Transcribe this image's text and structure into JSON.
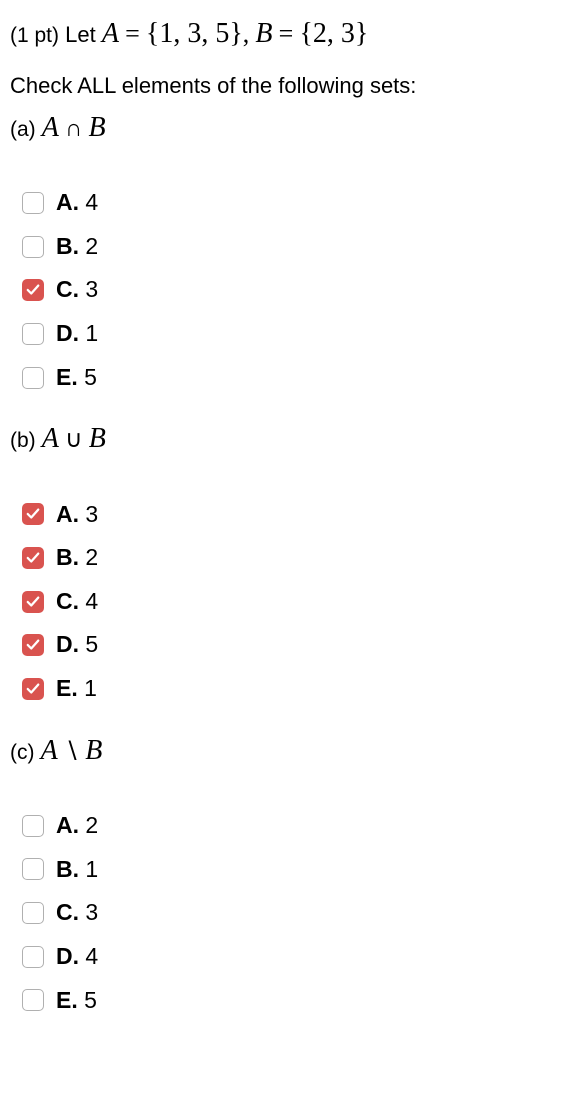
{
  "points_prefix": "(1 pt)",
  "let_text": "Let",
  "setA_var": "A",
  "setB_var": "B",
  "equals": "=",
  "setA_values": "{1, 3, 5}",
  "setB_values": "{2, 3}",
  "instruction": "Check ALL elements of the following sets:",
  "parts": {
    "a": {
      "label": "(a)",
      "expr_left": "A",
      "expr_op": "∩",
      "expr_right": "B",
      "options": [
        {
          "letter": "A.",
          "value": "4",
          "checked": false
        },
        {
          "letter": "B.",
          "value": "2",
          "checked": false
        },
        {
          "letter": "C.",
          "value": "3",
          "checked": true
        },
        {
          "letter": "D.",
          "value": "1",
          "checked": false
        },
        {
          "letter": "E.",
          "value": "5",
          "checked": false
        }
      ]
    },
    "b": {
      "label": "(b)",
      "expr_left": "A",
      "expr_op": "∪",
      "expr_right": "B",
      "options": [
        {
          "letter": "A.",
          "value": "3",
          "checked": true
        },
        {
          "letter": "B.",
          "value": "2",
          "checked": true
        },
        {
          "letter": "C.",
          "value": "4",
          "checked": true
        },
        {
          "letter": "D.",
          "value": "5",
          "checked": true
        },
        {
          "letter": "E.",
          "value": "1",
          "checked": true
        }
      ]
    },
    "c": {
      "label": "(c)",
      "expr_left": "A",
      "expr_op": "∖",
      "expr_right": "B",
      "options": [
        {
          "letter": "A.",
          "value": "2",
          "checked": false
        },
        {
          "letter": "B.",
          "value": "1",
          "checked": false
        },
        {
          "letter": "C.",
          "value": "3",
          "checked": false
        },
        {
          "letter": "D.",
          "value": "4",
          "checked": false
        },
        {
          "letter": "E.",
          "value": "5",
          "checked": false
        }
      ]
    }
  }
}
